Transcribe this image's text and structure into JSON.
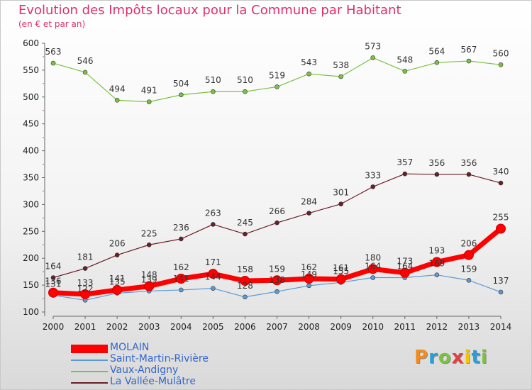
{
  "header": {
    "title": "Evolution des Impôts locaux pour la Commune par Habitant",
    "subtitle": "(en € et par an)"
  },
  "logo": {
    "text": "Proxiti",
    "colors": [
      "#f28c1e",
      "#2a9fd6",
      "#7cc242",
      "#e04040",
      "#f5c400",
      "#2a9fd6",
      "#7cc242"
    ]
  },
  "chart_data": {
    "type": "line",
    "x": [
      "2000",
      "2001",
      "2002",
      "2003",
      "2004",
      "2005",
      "2006",
      "2007",
      "2008",
      "2009",
      "2010",
      "2011",
      "2012",
      "2013",
      "2014"
    ],
    "ylim": [
      100,
      600
    ],
    "yticks": [
      100,
      150,
      200,
      250,
      300,
      350,
      400,
      450,
      500,
      550,
      600
    ],
    "grid": false,
    "legend_position": "bottom-left",
    "series": [
      {
        "name": "MOLAIN",
        "color": "#ff0000",
        "values": [
          136,
          133,
          141,
          148,
          162,
          171,
          158,
          159,
          162,
          161,
          180,
          173,
          193,
          206,
          255
        ]
      },
      {
        "name": "Saint-Martin-Rivière",
        "color": "#5b9bd5",
        "values": [
          131,
          122,
          135,
          139,
          141,
          144,
          128,
          138,
          149,
          155,
          164,
          164,
          169,
          159,
          137
        ]
      },
      {
        "name": "Vaux-Andigny",
        "color": "#7cc242",
        "values": [
          563,
          546,
          494,
          491,
          504,
          510,
          510,
          519,
          543,
          538,
          573,
          548,
          564,
          567,
          560
        ]
      },
      {
        "name": "La Vallée-Mulâtre",
        "color": "#6b1f26",
        "values": [
          164,
          181,
          206,
          225,
          236,
          263,
          245,
          266,
          284,
          301,
          333,
          357,
          356,
          356,
          340
        ]
      }
    ]
  }
}
